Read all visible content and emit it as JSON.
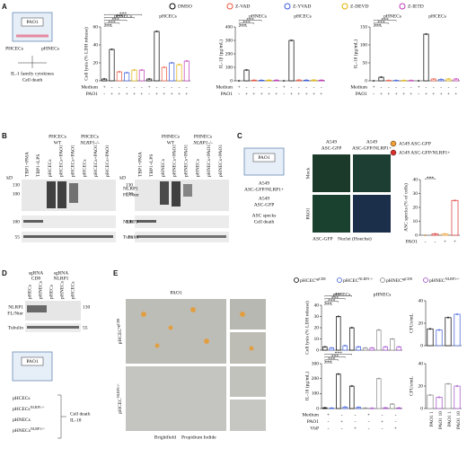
{
  "panels": {
    "A": {
      "label": "A",
      "schematic": {
        "box": "PAO1",
        "cells": [
          "PHCECs",
          "pHNECs"
        ],
        "readout": [
          "IL-1 family cytokines",
          "Cell death"
        ]
      },
      "legend": [
        {
          "name": "DMSO",
          "color": "#000000"
        },
        {
          "name": "Z-VAD",
          "color": "#e8553d"
        },
        {
          "name": "Z-YVAD",
          "color": "#3b5bdb"
        },
        {
          "name": "Z-DEVD",
          "color": "#e0b100"
        },
        {
          "name": "Z-IETD",
          "color": "#c03ab8"
        }
      ],
      "charts": [
        {
          "type": "bar",
          "headers": [
            "pHNECs",
            "pHCECs"
          ],
          "ylabel": "Cell lysis (% LDH release)",
          "ylim": [
            0,
            60
          ],
          "yticks": [
            0,
            20,
            40,
            60
          ],
          "values": [
            2,
            35,
            10,
            9,
            12,
            12,
            2,
            55,
            15,
            20,
            18,
            22
          ],
          "colors": [
            "#000000",
            "#000000",
            "#e8553d",
            "#3b5bdb",
            "#e0b100",
            "#c03ab8",
            "#000000",
            "#000000",
            "#e8553d",
            "#3b5bdb",
            "#e0b100",
            "#c03ab8"
          ],
          "sig": [
            "***",
            "***",
            "***",
            "***",
            "***"
          ],
          "rows": [
            {
              "label": "Medium",
              "signs": [
                "+",
                "-",
                "-",
                "-",
                "-",
                "-",
                "+",
                "-",
                "-",
                "-",
                "-",
                "-"
              ]
            },
            {
              "label": "PAO1",
              "signs": [
                "-",
                "+",
                "+",
                "+",
                "+",
                "+",
                "-",
                "+",
                "+",
                "+",
                "+",
                "+"
              ]
            }
          ]
        },
        {
          "type": "bar",
          "headers": [
            "pHNECs",
            "pHCECs"
          ],
          "ylabel": "IL-1β (pg/mL)",
          "ylim": [
            0,
            400
          ],
          "yticks": [
            0,
            100,
            200,
            300,
            400
          ],
          "values": [
            0,
            80,
            5,
            4,
            5,
            5,
            0,
            300,
            6,
            5,
            6,
            5
          ],
          "colors": [
            "#000000",
            "#000000",
            "#e8553d",
            "#3b5bdb",
            "#e0b100",
            "#c03ab8",
            "#000000",
            "#000000",
            "#e8553d",
            "#3b5bdb",
            "#e0b100",
            "#c03ab8"
          ],
          "sig": [
            "***",
            "***",
            "***"
          ],
          "rows": [
            {
              "label": "Medium",
              "signs": [
                "+",
                "-",
                "-",
                "-",
                "-",
                "-",
                "+",
                "-",
                "-",
                "-",
                "-",
                "-"
              ]
            },
            {
              "label": "PAO1",
              "signs": [
                "-",
                "+",
                "+",
                "+",
                "+",
                "+",
                "-",
                "+",
                "+",
                "+",
                "+",
                "+"
              ]
            }
          ]
        },
        {
          "type": "bar",
          "headers": [
            "pHNECs",
            "pHCECs"
          ],
          "ylabel": "IL-18 (pg/mL)",
          "ylim": [
            0,
            150
          ],
          "yticks": [
            0,
            50,
            100,
            150
          ],
          "values": [
            0,
            10,
            1,
            1,
            1,
            1,
            0,
            130,
            5,
            4,
            5,
            5
          ],
          "colors": [
            "#000000",
            "#000000",
            "#e8553d",
            "#3b5bdb",
            "#e0b100",
            "#c03ab8",
            "#000000",
            "#000000",
            "#e8553d",
            "#3b5bdb",
            "#e0b100",
            "#c03ab8"
          ],
          "sig": [
            "***",
            "***",
            "***"
          ],
          "rows": [
            {
              "label": "Medium",
              "signs": [
                "+",
                "-",
                "-",
                "-",
                "-",
                "-",
                "+",
                "-",
                "-",
                "-",
                "-",
                "-"
              ]
            },
            {
              "label": "PAO1",
              "signs": [
                "-",
                "+",
                "+",
                "+",
                "+",
                "+",
                "-",
                "+",
                "+",
                "+",
                "+",
                "+"
              ]
            }
          ]
        }
      ]
    },
    "B": {
      "label": "B",
      "kd": "kD",
      "blots": [
        {
          "groups": [
            {
              "name": "PHCECs",
              "sub": "WT"
            },
            {
              "name": "PHCECs",
              "sub": "NLRP1-/-"
            }
          ],
          "lanes": [
            "TBP1+PMA",
            "TBP1+LPS",
            "pHCECs",
            "pHCECs+PAO1",
            "pHCECs+PAO1",
            "pHCECs",
            "pHCECs+PAO1",
            "pHCECs+PAO1"
          ],
          "markers": [
            "130",
            "100",
            "100",
            "55"
          ]
        },
        {
          "groups": [
            {
              "name": "PHNECs",
              "sub": "WT"
            },
            {
              "name": "PHNECs",
              "sub": "NLRP1-/-"
            }
          ],
          "lanes": [
            "TBP1+PMA",
            "TBP1+LPS",
            "pHNECs",
            "pHNECs+PAO1",
            "pHNECs+PAO1",
            "pHNECs",
            "pHNECs+PAO1",
            "pHNECs+PAO1"
          ],
          "markers": [
            "130",
            "100",
            "100",
            "55"
          ]
        }
      ],
      "bands": [
        "NLRP1",
        "FL/Nter",
        "NLRP3",
        "Tubulin"
      ]
    },
    "C": {
      "label": "C",
      "schematic": {
        "box": "PAO1",
        "cells": [
          "A549",
          "ASC-GFP/NLRP1+",
          "A549",
          "ASC-GFP"
        ],
        "readout": [
          "ASC specks",
          "Cell death"
        ]
      },
      "columns": [
        "A549",
        "ASC-GFP",
        "A549",
        "ASC-GFP/NLRP1+"
      ],
      "rows": [
        "Mock",
        "PAO1"
      ],
      "footer": [
        "ASC-GFP",
        "Nuclei (Hoechst)"
      ],
      "legend": [
        {
          "name": "A549 ASC-GFP",
          "color": "#f0a030"
        },
        {
          "name": "A549 ASC-GFP/NLRP1+",
          "color": "#d9302c"
        }
      ],
      "chart": {
        "type": "bar",
        "ylabel": "ASC specks (% of cells)",
        "ylim": [
          0,
          40
        ],
        "yticks": [
          0,
          10,
          20,
          30,
          40
        ],
        "values": [
          0,
          1,
          1,
          25
        ],
        "colors": [
          "#f0a030",
          "#d9302c",
          "#f0a030",
          "#d9302c"
        ],
        "sig": [
          "***"
        ],
        "rows": [
          {
            "label": "PAO1",
            "signs": [
              "-",
              "-",
              "+",
              "+"
            ]
          }
        ]
      }
    },
    "D": {
      "label": "D",
      "headers": [
        [
          "sgRNA",
          "CD8"
        ],
        [
          "sgRNA",
          "NLRP1"
        ]
      ],
      "lanes": [
        "pHECs",
        "pHNECs",
        "pHECs",
        "pHNECs",
        "pHCECs"
      ],
      "bands": [
        "NLRP1",
        "FL/Nter",
        "Tubulin"
      ],
      "markers": [
        "130",
        "55"
      ],
      "schematic": {
        "box": "PAO1",
        "cells": [
          "pHCECs",
          "pHCECs",
          "pHNECs",
          "pHNECs"
        ],
        "sups": [
          "",
          "NLRP1-/-",
          "",
          "NLRP1-/-"
        ],
        "readout": [
          "Cell death",
          "IL-18"
        ]
      }
    },
    "E": {
      "label": "E",
      "title": "PAO1",
      "rows": [
        {
          "base": "pHCEC",
          "sup": "sgCD8"
        },
        {
          "base": "pHCEC",
          "sup": "NLRP1-/-"
        }
      ],
      "footer": [
        "Brightfield",
        "Propidium Iodide"
      ],
      "legend": [
        {
          "base": "pHCEC",
          "sup": "sgCD8",
          "color": "#000000"
        },
        {
          "base": "pHCEC",
          "sup": "NLRP1-/-",
          "color": "#3b5bdb"
        },
        {
          "base": "pHNEC",
          "sup": "sgCD8",
          "color": "#888888"
        },
        {
          "base": "pHNEC",
          "sup": "NLRP1-/-",
          "color": "#a04ac8"
        }
      ],
      "charts": [
        {
          "type": "bar",
          "headers": [
            "pHCECs",
            "pHNECs"
          ],
          "ylabel": "Cell lysis (% LDH release)",
          "ylim": [
            0,
            40
          ],
          "yticks": [
            0,
            10,
            20,
            30,
            40
          ],
          "values": [
            3,
            2,
            30,
            4,
            20,
            3,
            2,
            2,
            18,
            3,
            10,
            3
          ],
          "colors": [
            "#000000",
            "#3b5bdb",
            "#000000",
            "#3b5bdb",
            "#000000",
            "#3b5bdb",
            "#888888",
            "#a04ac8",
            "#888888",
            "#a04ac8",
            "#888888",
            "#a04ac8"
          ],
          "sig": [
            "***",
            "***",
            "***",
            "***"
          ]
        },
        {
          "type": "bar",
          "ylabel": "IL-18 (pg/mL)",
          "ylim": [
            0,
            300
          ],
          "yticks": [
            0,
            100,
            200,
            300
          ],
          "values": [
            5,
            3,
            230,
            10,
            150,
            8,
            3,
            2,
            200,
            5,
            30,
            4
          ],
          "colors": [
            "#000000",
            "#3b5bdb",
            "#000000",
            "#3b5bdb",
            "#000000",
            "#3b5bdb",
            "#888888",
            "#a04ac8",
            "#888888",
            "#a04ac8",
            "#888888",
            "#a04ac8"
          ],
          "sig": [
            "***",
            "***",
            "***",
            "***"
          ],
          "rows": [
            {
              "label": "Medium",
              "signs": [
                "+",
                "-",
                "-",
                "+",
                "-",
                "-"
              ]
            },
            {
              "label": "PAO1",
              "signs": [
                "-",
                "+",
                "-",
                "-",
                "+",
                "-"
              ]
            },
            {
              "label": "VbP",
              "signs": [
                "-",
                "-",
                "+",
                "-",
                "-",
                "+"
              ]
            }
          ]
        },
        {
          "type": "bar",
          "ylabel": "CFUs/mL",
          "ylim": [
            0,
            40
          ],
          "yticks": [
            0,
            20,
            40
          ],
          "values": [
            15,
            14,
            25,
            28
          ],
          "colors": [
            "#000000",
            "#3b5bdb",
            "#000000",
            "#3b5bdb"
          ]
        },
        {
          "type": "bar",
          "ylabel": "CFUs/mL",
          "ylim": [
            0,
            40
          ],
          "yticks": [
            0,
            20,
            40
          ],
          "values": [
            12,
            10,
            22,
            20
          ],
          "colors": [
            "#888888",
            "#a04ac8",
            "#888888",
            "#a04ac8"
          ],
          "xlabels": [
            "PAO1 1",
            "PAO1 10",
            "PAO1 1",
            "PAO1 10"
          ]
        }
      ]
    }
  }
}
